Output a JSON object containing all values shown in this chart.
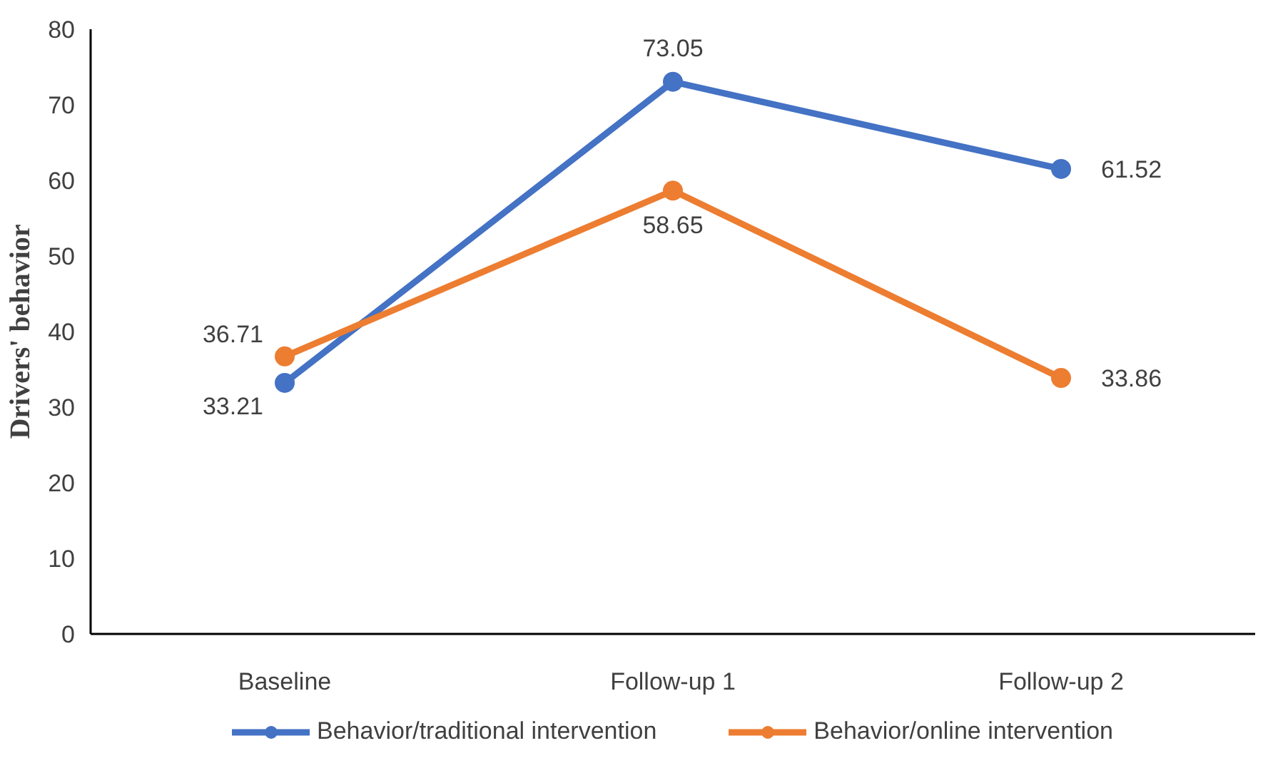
{
  "chart_data": {
    "type": "line",
    "ylabel": "Drivers' behavior",
    "categories": [
      "Baseline",
      "Follow-up 1",
      "Follow-up 2"
    ],
    "series": [
      {
        "name": "Behavior/traditional intervention",
        "color": "#4472c4",
        "values": [
          33.21,
          73.05,
          61.52
        ]
      },
      {
        "name": "Behavior/online intervention",
        "color": "#ed7d31",
        "values": [
          36.71,
          58.65,
          33.86
        ]
      }
    ],
    "ylim": [
      0,
      80
    ],
    "yticks": [
      0,
      10,
      20,
      30,
      40,
      50,
      60,
      70,
      80
    ],
    "grid": false,
    "legend": "bottom",
    "marker": "circle",
    "line_style": "solid",
    "data_labels": true
  }
}
